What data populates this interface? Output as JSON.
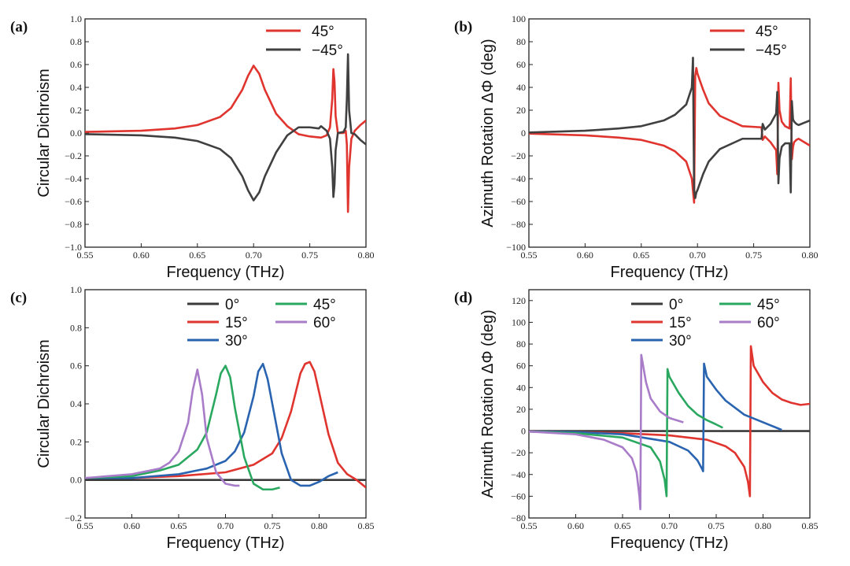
{
  "palette": {
    "0°": "#3a3a3a",
    "15°": "#e0342f",
    "30°": "#2a64b0",
    "45°": "#2aa860",
    "60°": "#a87cc8",
    "45°_ab": "#e0342f",
    "−45°_ab": "#404040"
  },
  "charts": [
    {
      "panel": "(a)",
      "type": "line",
      "xlabel": "Frequency (THz)",
      "ylabel": "Circular Dichroism",
      "xlim": [
        0.55,
        0.8
      ],
      "ylim": [
        -1.0,
        1.0
      ],
      "xticks": [
        "0.55",
        "0.60",
        "0.65",
        "0.70",
        "0.75",
        "0.80"
      ],
      "yticks": [
        "−1.0",
        "−0.8",
        "−0.6",
        "−0.4",
        "−0.2",
        "0.0",
        "0.2",
        "0.4",
        "0.6",
        "0.8",
        "1.0"
      ],
      "legend_position": "top-right",
      "legend_layout": "single",
      "series": [
        {
          "name": "45°",
          "color": "#e0342f",
          "x": [
            0.55,
            0.6,
            0.63,
            0.65,
            0.67,
            0.68,
            0.69,
            0.695,
            0.7,
            0.705,
            0.71,
            0.72,
            0.73,
            0.74,
            0.75,
            0.76,
            0.765,
            0.768,
            0.77,
            0.771,
            0.772,
            0.773,
            0.775,
            0.78,
            0.782,
            0.783,
            0.784,
            0.785,
            0.787,
            0.79,
            0.795,
            0.8
          ],
          "y": [
            0.01,
            0.02,
            0.04,
            0.07,
            0.14,
            0.22,
            0.38,
            0.5,
            0.59,
            0.52,
            0.38,
            0.17,
            0.06,
            -0.01,
            -0.03,
            -0.04,
            -0.02,
            0.05,
            0.3,
            0.56,
            0.45,
            0.15,
            0.0,
            0.0,
            0.02,
            -0.1,
            -0.69,
            -0.3,
            -0.05,
            0.02,
            0.07,
            0.11
          ]
        },
        {
          "name": "−45°",
          "color": "#404040",
          "x": [
            0.55,
            0.6,
            0.63,
            0.65,
            0.67,
            0.68,
            0.69,
            0.695,
            0.7,
            0.705,
            0.71,
            0.72,
            0.73,
            0.74,
            0.75,
            0.758,
            0.76,
            0.765,
            0.768,
            0.77,
            0.771,
            0.772,
            0.773,
            0.775,
            0.78,
            0.782,
            0.783,
            0.784,
            0.785,
            0.787,
            0.79,
            0.795,
            0.8
          ],
          "y": [
            -0.01,
            -0.02,
            -0.04,
            -0.07,
            -0.14,
            -0.22,
            -0.38,
            -0.5,
            -0.59,
            -0.52,
            -0.38,
            -0.17,
            -0.02,
            0.05,
            0.05,
            0.04,
            0.06,
            0.02,
            -0.05,
            -0.3,
            -0.56,
            -0.45,
            -0.15,
            0.0,
            0.01,
            0.05,
            0.3,
            0.69,
            0.2,
            0.0,
            -0.01,
            -0.06,
            -0.1
          ]
        }
      ]
    },
    {
      "panel": "(b)",
      "type": "line",
      "xlabel": "Frequency (THz)",
      "ylabel": "Azimuth Rotation ΔΦ (deg)",
      "xlim": [
        0.55,
        0.8
      ],
      "ylim": [
        -100,
        100
      ],
      "xticks": [
        "0.55",
        "0.60",
        "0.65",
        "0.70",
        "0.75",
        "0.80"
      ],
      "yticks": [
        "−100",
        "−80",
        "−60",
        "−40",
        "−20",
        "0",
        "20",
        "40",
        "60",
        "80",
        "100"
      ],
      "legend_position": "top-right",
      "legend_layout": "single",
      "series": [
        {
          "name": "45°",
          "color": "#e0342f",
          "x": [
            0.55,
            0.6,
            0.63,
            0.65,
            0.67,
            0.68,
            0.69,
            0.695,
            0.697,
            0.698,
            0.699,
            0.7,
            0.705,
            0.71,
            0.72,
            0.74,
            0.757,
            0.758,
            0.76,
            0.765,
            0.77,
            0.771,
            0.772,
            0.773,
            0.775,
            0.778,
            0.782,
            0.783,
            0.784,
            0.785,
            0.786,
            0.788,
            0.79,
            0.795,
            0.8
          ],
          "y": [
            -0.5,
            -2,
            -4,
            -6,
            -11,
            -16,
            -25,
            -40,
            -61,
            50,
            57,
            52,
            38,
            26,
            15,
            6,
            5,
            -6,
            -3,
            -8,
            -15,
            -36,
            44,
            20,
            10,
            6,
            4,
            48,
            -23,
            -12,
            -8,
            -6,
            -5,
            -8,
            -11
          ]
        },
        {
          "name": "−45°",
          "color": "#404040",
          "x": [
            0.55,
            0.6,
            0.63,
            0.65,
            0.67,
            0.68,
            0.69,
            0.695,
            0.696,
            0.697,
            0.698,
            0.699,
            0.7,
            0.705,
            0.71,
            0.72,
            0.74,
            0.757,
            0.758,
            0.76,
            0.765,
            0.77,
            0.771,
            0.772,
            0.773,
            0.775,
            0.778,
            0.782,
            0.783,
            0.784,
            0.785,
            0.786,
            0.788,
            0.79,
            0.795,
            0.8
          ],
          "y": [
            0.5,
            2,
            4,
            6,
            11,
            16,
            25,
            40,
            66,
            -50,
            -57,
            -52,
            -50,
            -36,
            -25,
            -14,
            -5,
            -5,
            8,
            3,
            8,
            17,
            36,
            -44,
            -22,
            -12,
            -9,
            -9,
            -52,
            28,
            12,
            10,
            8,
            7,
            9,
            11
          ]
        }
      ]
    },
    {
      "panel": "(c)",
      "type": "line",
      "xlabel": "Frequency (THz)",
      "ylabel": "Circular Dichroism",
      "xlim": [
        0.55,
        0.85
      ],
      "ylim": [
        -0.2,
        1.0
      ],
      "xticks": [
        "0.55",
        "0.60",
        "0.65",
        "0.70",
        "0.75",
        "0.80",
        "0.85"
      ],
      "yticks": [
        "−0.2",
        "0.0",
        "0.2",
        "0.4",
        "0.6",
        "0.8",
        "1.0"
      ],
      "legend_position": "top-right",
      "legend_layout": "two-column",
      "series": [
        {
          "name": "0°",
          "color": "#3a3a3a",
          "x": [
            0.55,
            0.85
          ],
          "y": [
            0.0,
            0.0
          ]
        },
        {
          "name": "15°",
          "color": "#e0342f",
          "x": [
            0.55,
            0.6,
            0.65,
            0.7,
            0.73,
            0.75,
            0.76,
            0.77,
            0.78,
            0.785,
            0.79,
            0.795,
            0.8,
            0.81,
            0.82,
            0.83,
            0.84,
            0.85
          ],
          "y": [
            0.01,
            0.01,
            0.02,
            0.04,
            0.08,
            0.14,
            0.22,
            0.36,
            0.56,
            0.61,
            0.62,
            0.57,
            0.46,
            0.24,
            0.09,
            0.03,
            0.0,
            -0.04
          ]
        },
        {
          "name": "30°",
          "color": "#2a64b0",
          "x": [
            0.55,
            0.6,
            0.65,
            0.68,
            0.7,
            0.71,
            0.72,
            0.73,
            0.735,
            0.74,
            0.745,
            0.75,
            0.76,
            0.77,
            0.78,
            0.79,
            0.8,
            0.81,
            0.82
          ],
          "y": [
            0.01,
            0.01,
            0.03,
            0.06,
            0.1,
            0.15,
            0.25,
            0.44,
            0.57,
            0.61,
            0.53,
            0.4,
            0.14,
            0.0,
            -0.03,
            -0.03,
            -0.01,
            0.02,
            0.04
          ]
        },
        {
          "name": "45°",
          "color": "#2aa860",
          "x": [
            0.55,
            0.6,
            0.63,
            0.65,
            0.67,
            0.68,
            0.69,
            0.695,
            0.7,
            0.705,
            0.71,
            0.72,
            0.73,
            0.74,
            0.75,
            0.758
          ],
          "y": [
            0.01,
            0.02,
            0.05,
            0.08,
            0.16,
            0.25,
            0.45,
            0.56,
            0.6,
            0.54,
            0.38,
            0.12,
            -0.02,
            -0.05,
            -0.05,
            -0.04
          ]
        },
        {
          "name": "60°",
          "color": "#a87cc8",
          "x": [
            0.55,
            0.6,
            0.63,
            0.64,
            0.65,
            0.66,
            0.665,
            0.67,
            0.675,
            0.68,
            0.69,
            0.7,
            0.71,
            0.715
          ],
          "y": [
            0.01,
            0.03,
            0.06,
            0.09,
            0.15,
            0.3,
            0.47,
            0.58,
            0.45,
            0.22,
            0.04,
            -0.02,
            -0.03,
            -0.03
          ]
        }
      ]
    },
    {
      "panel": "(d)",
      "type": "line",
      "xlabel": "Frequency (THz)",
      "ylabel": "Azimuth Rotation ΔΦ (deg)",
      "xlim": [
        0.55,
        0.85
      ],
      "ylim": [
        -80,
        130
      ],
      "xticks": [
        "0.55",
        "0.60",
        "0.65",
        "0.70",
        "0.75",
        "0.80",
        "0.85"
      ],
      "yticks": [
        "−80",
        "−60",
        "−40",
        "−20",
        "0",
        "20",
        "40",
        "60",
        "80",
        "100",
        "120"
      ],
      "legend_position": "top-right",
      "legend_layout": "two-column",
      "series": [
        {
          "name": "0°",
          "color": "#3a3a3a",
          "x": [
            0.55,
            0.85
          ],
          "y": [
            0,
            0
          ]
        },
        {
          "name": "15°",
          "color": "#e0342f",
          "x": [
            0.55,
            0.6,
            0.65,
            0.7,
            0.74,
            0.76,
            0.77,
            0.78,
            0.784,
            0.786,
            0.787,
            0.79,
            0.8,
            0.81,
            0.82,
            0.83,
            0.84,
            0.85
          ],
          "y": [
            -0.5,
            -1,
            -2,
            -4,
            -8,
            -14,
            -20,
            -33,
            -47,
            -60,
            78,
            60,
            45,
            35,
            29,
            26,
            24,
            25
          ]
        },
        {
          "name": "30°",
          "color": "#2a64b0",
          "x": [
            0.55,
            0.6,
            0.65,
            0.7,
            0.72,
            0.73,
            0.735,
            0.736,
            0.737,
            0.74,
            0.75,
            0.76,
            0.78,
            0.8,
            0.82
          ],
          "y": [
            -0.5,
            -1,
            -3,
            -10,
            -18,
            -27,
            -35,
            -37,
            62,
            50,
            38,
            28,
            15,
            8,
            1
          ]
        },
        {
          "name": "45°",
          "color": "#2aa860",
          "x": [
            0.55,
            0.6,
            0.65,
            0.68,
            0.69,
            0.695,
            0.697,
            0.698,
            0.7,
            0.71,
            0.72,
            0.73,
            0.74,
            0.75,
            0.757
          ],
          "y": [
            -0.5,
            -2,
            -6,
            -15,
            -28,
            -45,
            -60,
            57,
            50,
            35,
            23,
            15,
            10,
            6,
            3
          ]
        },
        {
          "name": "60°",
          "color": "#a87cc8",
          "x": [
            0.55,
            0.6,
            0.63,
            0.65,
            0.66,
            0.665,
            0.668,
            0.669,
            0.67,
            0.675,
            0.68,
            0.69,
            0.7,
            0.715
          ],
          "y": [
            -0.5,
            -3,
            -8,
            -15,
            -25,
            -38,
            -60,
            -72,
            70,
            45,
            30,
            18,
            12,
            8
          ]
        }
      ]
    }
  ]
}
